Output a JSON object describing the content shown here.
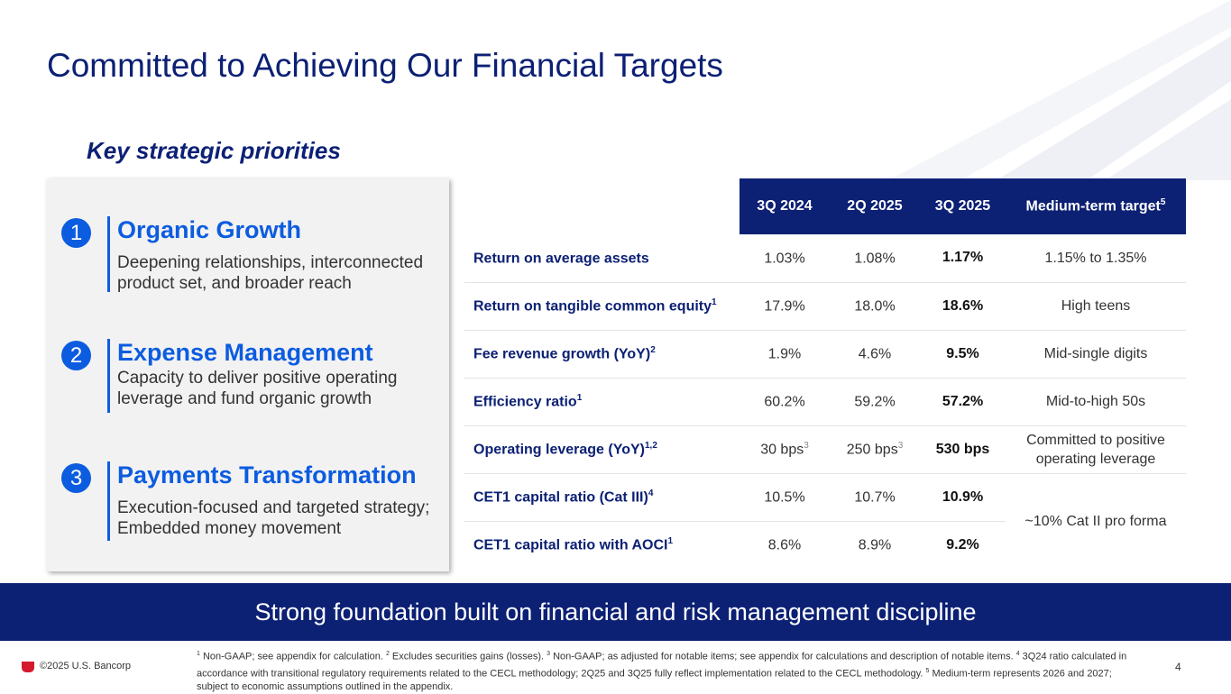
{
  "title": "Committed to Achieving Our Financial Targets",
  "subtitle": "Key strategic priorities",
  "priorities": [
    {
      "num": "1",
      "heading": "Organic Growth",
      "desc": "Deepening relationships, interconnected product set, and broader reach"
    },
    {
      "num": "2",
      "heading": "Expense Management",
      "desc": "Capacity to deliver positive operating leverage and fund organic growth"
    },
    {
      "num": "3",
      "heading": "Payments Transformation",
      "desc": "Execution-focused and targeted strategy; Embedded money movement"
    }
  ],
  "table": {
    "headers": [
      "3Q 2024",
      "2Q 2025",
      "3Q 2025",
      "Medium-term target"
    ],
    "target_sup": "5",
    "rows": [
      {
        "label": "Return on average assets",
        "sup": "",
        "v1": "1.03%",
        "v2": "1.08%",
        "v3": "1.17%",
        "target": "1.15% to 1.35%"
      },
      {
        "label": "Return on tangible common equity",
        "sup": "1",
        "v1": "17.9%",
        "v2": "18.0%",
        "v3": "18.6%",
        "target": "High teens"
      },
      {
        "label": "Fee revenue growth (YoY)",
        "sup": "2",
        "v1": "1.9%",
        "v2": "4.6%",
        "v3": "9.5%",
        "target": "Mid-single digits"
      },
      {
        "label": "Efficiency ratio",
        "sup": "1",
        "v1": "60.2%",
        "v2": "59.2%",
        "v3": "57.2%",
        "target": "Mid-to-high 50s"
      },
      {
        "label": "Operating leverage (YoY)",
        "sup": "1,2",
        "v1": "30 bps",
        "v1sup": "3",
        "v2": "250 bps",
        "v2sup": "3",
        "v3": "530 bps",
        "target": "Committed to positive operating leverage"
      },
      {
        "label": "CET1 capital ratio (Cat III)",
        "sup": "4",
        "v1": "10.5%",
        "v2": "10.7%",
        "v3": "10.9%",
        "target": "~10% Cat II pro forma"
      },
      {
        "label": "CET1 capital ratio with AOCI",
        "sup": "1",
        "v1": "8.6%",
        "v2": "8.9%",
        "v3": "9.2%"
      }
    ]
  },
  "banner": "Strong foundation built on financial and risk management discipline",
  "copyright": "©2025 U.S. Bancorp",
  "footnotes": [
    {
      "sup": "1",
      "text": " Non-GAAP; see appendix for calculation. "
    },
    {
      "sup": "2",
      "text": " Excludes securities gains (losses). "
    },
    {
      "sup": "3",
      "text": " Non-GAAP; as adjusted for notable items; see appendix for calculations and description of notable items. "
    },
    {
      "sup": "4",
      "text": " 3Q24 ratio calculated in accordance with transitional regulatory requirements related to the CECL methodology; 2Q25 and 3Q25 fully reflect implementation related to the CECL methodology. "
    },
    {
      "sup": "5",
      "text": " Medium-term represents 2026 and 2027; subject to economic assumptions outlined in the appendix."
    }
  ],
  "page_number": "4",
  "colors": {
    "navy": "#0c2074",
    "accent_blue": "#0c5ce0",
    "logo_red": "#d5192c"
  }
}
